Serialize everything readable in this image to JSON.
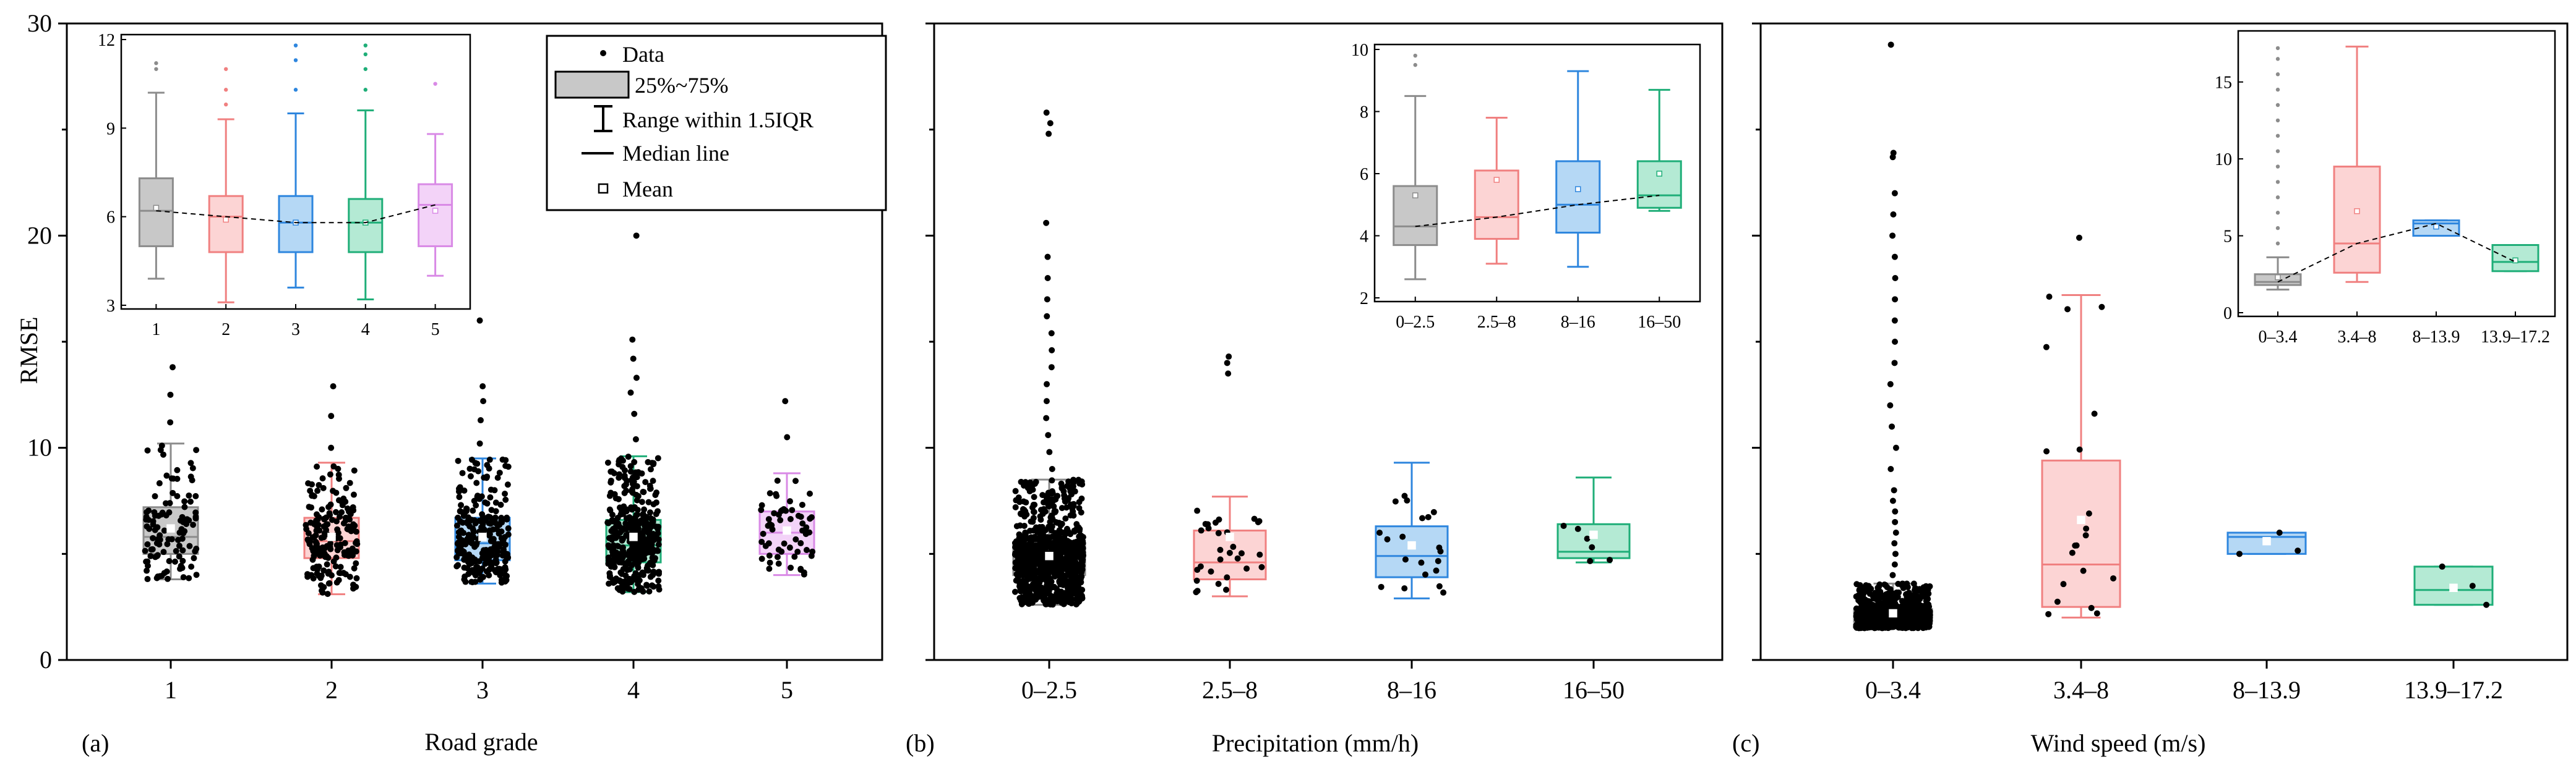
{
  "chart_data": [
    {
      "panel_label": "(a)",
      "type": "box",
      "xlabel": "Road grade",
      "ylabel": "RMSE",
      "ylim": [
        0,
        30
      ],
      "y_ticks": [
        0,
        10,
        20,
        30
      ],
      "categories": [
        "1",
        "2",
        "3",
        "4",
        "5"
      ],
      "colors": [
        "#8c8c8c",
        "#f08080",
        "#2e86de",
        "#1fae78",
        "#d98ae6"
      ],
      "fills": [
        "#c8c8c8",
        "#fcd4d4",
        "#b5d8f5",
        "#b4ead4",
        "#f3d3f8"
      ],
      "boxes": [
        {
          "q1": 5.0,
          "median": 5.8,
          "q3": 7.2,
          "whisker_low": 3.8,
          "whisker_high": 10.2,
          "mean": 6.2,
          "outliers": [
            11.2,
            12.5,
            13.8
          ],
          "n": 110
        },
        {
          "q1": 4.8,
          "median": 5.6,
          "q3": 6.7,
          "whisker_low": 3.1,
          "whisker_high": 9.3,
          "mean": 5.8,
          "outliers": [
            10.0,
            11.5,
            12.9
          ],
          "n": 180
        },
        {
          "q1": 4.7,
          "median": 5.5,
          "q3": 6.7,
          "whisker_low": 3.6,
          "whisker_high": 9.5,
          "mean": 5.8,
          "outliers": [
            10.2,
            11.3,
            12.2,
            12.9,
            16.0
          ],
          "n": 260
        },
        {
          "q1": 4.6,
          "median": 5.4,
          "q3": 6.6,
          "whisker_low": 3.2,
          "whisker_high": 9.6,
          "mean": 5.8,
          "outliers": [
            10.4,
            11.6,
            12.6,
            13.3,
            14.2,
            15.1,
            20.0
          ],
          "n": 380
        },
        {
          "q1": 5.0,
          "median": 6.0,
          "q3": 7.0,
          "whisker_low": 4.0,
          "whisker_high": 8.8,
          "mean": 6.1,
          "outliers": [
            10.5,
            12.2
          ],
          "n": 60
        }
      ],
      "inset": {
        "ylim": [
          3,
          12
        ],
        "y_ticks": [
          3,
          6,
          9,
          12
        ],
        "categories": [
          "1",
          "2",
          "3",
          "4",
          "5"
        ],
        "boxes": [
          {
            "q1": 5.0,
            "median": 6.2,
            "q3": 7.3,
            "whisker_low": 3.9,
            "whisker_high": 10.2,
            "mean": 6.3,
            "outliers": [
              11.0,
              11.2
            ]
          },
          {
            "q1": 4.8,
            "median": 6.0,
            "q3": 6.7,
            "whisker_low": 3.1,
            "whisker_high": 9.3,
            "mean": 5.9,
            "outliers": [
              9.8,
              10.3,
              11.0
            ]
          },
          {
            "q1": 4.8,
            "median": 5.8,
            "q3": 6.7,
            "whisker_low": 3.6,
            "whisker_high": 9.5,
            "mean": 5.8,
            "outliers": [
              10.3,
              11.3,
              11.8
            ]
          },
          {
            "q1": 4.8,
            "median": 5.8,
            "q3": 6.6,
            "whisker_low": 3.2,
            "whisker_high": 9.6,
            "mean": 5.8,
            "outliers": [
              10.3,
              11.0,
              11.5,
              11.8
            ]
          },
          {
            "q1": 5.0,
            "median": 6.4,
            "q3": 7.1,
            "whisker_low": 4.0,
            "whisker_high": 8.8,
            "mean": 6.2,
            "outliers": [
              10.5
            ]
          }
        ]
      },
      "legend": {
        "position": "top-right",
        "items": [
          "Data",
          "25%~75%",
          "Range within 1.5IQR",
          "Median line",
          "Mean"
        ]
      }
    },
    {
      "panel_label": "(b)",
      "type": "box",
      "xlabel": "Precipitation (mm/h)",
      "ylim": [
        0,
        30
      ],
      "categories": [
        "0–2.5",
        "2.5–8",
        "8–16",
        "16–50"
      ],
      "colors": [
        "#8c8c8c",
        "#f08080",
        "#2e86de",
        "#1fae78"
      ],
      "fills": [
        "#c8c8c8",
        "#fcd4d4",
        "#b5d8f5",
        "#b4ead4"
      ],
      "boxes": [
        {
          "q1": 4.0,
          "median": 4.6,
          "q3": 5.5,
          "whisker_low": 2.6,
          "whisker_high": 8.5,
          "mean": 4.9,
          "outliers": [
            9.0,
            9.8,
            10.6,
            11.4,
            12.2,
            13.0,
            13.8,
            14.6,
            15.4,
            16.2,
            17.0,
            18.0,
            19.0,
            20.6,
            24.8,
            25.3,
            25.8
          ],
          "n": 900
        },
        {
          "q1": 3.8,
          "median": 4.6,
          "q3": 6.1,
          "whisker_low": 3.0,
          "whisker_high": 7.7,
          "mean": 5.8,
          "outliers": [
            13.5,
            14.0,
            14.3
          ],
          "n": 30
        },
        {
          "q1": 3.9,
          "median": 4.9,
          "q3": 6.3,
          "whisker_low": 2.9,
          "whisker_high": 9.3,
          "mean": 5.4,
          "outliers": [],
          "n": 20
        },
        {
          "q1": 4.8,
          "median": 5.1,
          "q3": 6.4,
          "whisker_low": 4.6,
          "whisker_high": 8.6,
          "mean": 5.9,
          "outliers": [],
          "n": 6
        }
      ],
      "inset": {
        "ylim": [
          2,
          10
        ],
        "y_ticks": [
          2,
          4,
          6,
          8,
          10
        ],
        "categories": [
          "0–2.5",
          "2.5–8",
          "8–16",
          "16–50"
        ],
        "boxes": [
          {
            "q1": 3.7,
            "median": 4.3,
            "q3": 5.6,
            "whisker_low": 2.6,
            "whisker_high": 8.5,
            "mean": 5.3,
            "outliers": [
              9.5,
              9.8
            ]
          },
          {
            "q1": 3.9,
            "median": 4.6,
            "q3": 6.1,
            "whisker_low": 3.1,
            "whisker_high": 7.8,
            "mean": 5.8,
            "outliers": []
          },
          {
            "q1": 4.1,
            "median": 5.0,
            "q3": 6.4,
            "whisker_low": 3.0,
            "whisker_high": 9.3,
            "mean": 5.5,
            "outliers": []
          },
          {
            "q1": 4.9,
            "median": 5.3,
            "q3": 6.4,
            "whisker_low": 4.8,
            "whisker_high": 8.7,
            "mean": 6.0,
            "outliers": []
          }
        ]
      }
    },
    {
      "panel_label": "(c)",
      "type": "box",
      "xlabel": "Wind speed (m/s)",
      "ylim": [
        0,
        30
      ],
      "categories": [
        "0–3.4",
        "3.4–8",
        "8–13.9",
        "13.9–17.2"
      ],
      "colors": [
        "#8c8c8c",
        "#f08080",
        "#2e86de",
        "#1fae78"
      ],
      "fills": [
        "#c8c8c8",
        "#fcd4d4",
        "#b5d8f5",
        "#b4ead4"
      ],
      "boxes": [
        {
          "q1": 1.8,
          "median": 2.0,
          "q3": 2.4,
          "whisker_low": 1.5,
          "whisker_high": 3.6,
          "mean": 2.2,
          "outliers": [
            4.0,
            4.5,
            5.0,
            5.5,
            6.0,
            6.5,
            7.0,
            7.5,
            8.0,
            9.0,
            10.0,
            11.0,
            12.0,
            13.0,
            14.0,
            15.0,
            16.0,
            17.0,
            18.0,
            19.0,
            20.0,
            21.0,
            22.0,
            23.7,
            23.9,
            29.0
          ],
          "n": 900
        },
        {
          "q1": 2.5,
          "median": 4.5,
          "q3": 9.4,
          "whisker_low": 2.0,
          "whisker_high": 17.2,
          "mean": 6.6,
          "outliers": [
            19.9
          ],
          "n": 20
        },
        {
          "q1": 5.0,
          "median": 5.8,
          "q3": 6.0,
          "whisker_low": 5.0,
          "whisker_high": 6.0,
          "mean": 5.6,
          "outliers": [],
          "n": 3
        },
        {
          "q1": 2.6,
          "median": 3.3,
          "q3": 4.4,
          "whisker_low": 2.6,
          "whisker_high": 4.4,
          "mean": 3.4,
          "outliers": [],
          "n": 3
        }
      ],
      "inset": {
        "ylim": [
          0,
          18
        ],
        "y_ticks": [
          0,
          5,
          10,
          15
        ],
        "categories": [
          "0–3.4",
          "3.4–8",
          "8–13.9",
          "13.9–17.2"
        ],
        "boxes": [
          {
            "q1": 1.8,
            "median": 2.0,
            "q3": 2.5,
            "whisker_low": 1.5,
            "whisker_high": 3.6,
            "mean": 2.3,
            "outliers": [
              4.5,
              5.5,
              6.5,
              7.5,
              8.5,
              9.5,
              10.5,
              11.5,
              12.5,
              13.5,
              14.5,
              15.5,
              16.5,
              17.2
            ]
          },
          {
            "q1": 2.6,
            "median": 4.5,
            "q3": 9.5,
            "whisker_low": 2.0,
            "whisker_high": 17.3,
            "mean": 6.6,
            "outliers": []
          },
          {
            "q1": 5.0,
            "median": 5.8,
            "q3": 6.0,
            "whisker_low": 5.0,
            "whisker_high": 6.0,
            "mean": 5.6,
            "outliers": []
          },
          {
            "q1": 2.7,
            "median": 3.3,
            "q3": 4.4,
            "whisker_low": 2.7,
            "whisker_high": 4.4,
            "mean": 3.4,
            "outliers": []
          }
        ]
      }
    }
  ]
}
